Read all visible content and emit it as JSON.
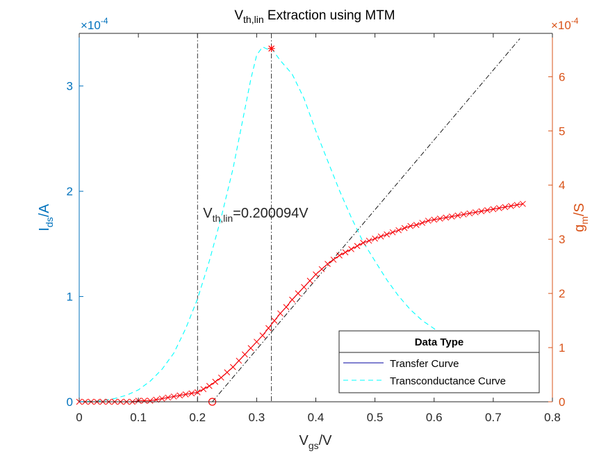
{
  "chart_data": {
    "type": "line",
    "title": {
      "main": "V",
      "sub": "th,lin",
      "rest": " Extraction using MTM"
    },
    "xlabel": {
      "main": "V",
      "sub": "gs",
      "rest": "/V"
    },
    "ylabel_left": {
      "main": "I",
      "sub": "ds",
      "rest": "/A"
    },
    "ylabel_right": {
      "main": "g",
      "sub": "m",
      "rest": "/S"
    },
    "exponent_left": {
      "base": "×10",
      "power": "-4"
    },
    "exponent_right": {
      "base": "×10",
      "power": "-4"
    },
    "xlim": [
      0,
      0.8
    ],
    "ylim_left": [
      0,
      3.5
    ],
    "ylim_right": [
      0,
      6.8
    ],
    "xticks": [
      "0",
      "0.1",
      "0.2",
      "0.3",
      "0.4",
      "0.5",
      "0.6",
      "0.7",
      "0.8"
    ],
    "yticks_left": [
      "0",
      "1",
      "2",
      "3"
    ],
    "yticks_right": [
      "0",
      "1",
      "2",
      "3",
      "4",
      "5",
      "6"
    ],
    "annotation": {
      "main": "V",
      "sub": "th,lin",
      "rest": "=0.200094V",
      "x": 0.2,
      "y": 1.75
    },
    "colors": {
      "left_axis": "#0072BD",
      "right_axis": "#D95319",
      "transfer": "#0000A0",
      "transconductance": "#00FFFF",
      "markers": "#FF0000",
      "guides": "#000000"
    },
    "legend": {
      "title": "Data Type",
      "position": "bottom-right",
      "entries": [
        "Transfer Curve",
        "Transconductance Curve"
      ]
    },
    "series": [
      {
        "name": "Transfer Curve",
        "axis": "left",
        "x": [
          0,
          0.01,
          0.02,
          0.03,
          0.04,
          0.05,
          0.06,
          0.07,
          0.08,
          0.09,
          0.1,
          0.11,
          0.12,
          0.13,
          0.14,
          0.15,
          0.16,
          0.17,
          0.18,
          0.19,
          0.2,
          0.21,
          0.22,
          0.23,
          0.24,
          0.25,
          0.26,
          0.27,
          0.28,
          0.29,
          0.3,
          0.31,
          0.32,
          0.33,
          0.34,
          0.35,
          0.36,
          0.37,
          0.38,
          0.39,
          0.4,
          0.41,
          0.42,
          0.43,
          0.44,
          0.45,
          0.46,
          0.47,
          0.48,
          0.49,
          0.5,
          0.51,
          0.52,
          0.53,
          0.54,
          0.55,
          0.56,
          0.57,
          0.58,
          0.59,
          0.6,
          0.61,
          0.62,
          0.63,
          0.64,
          0.65,
          0.66,
          0.67,
          0.68,
          0.69,
          0.7,
          0.71,
          0.72,
          0.73,
          0.74,
          0.75
        ],
        "y": [
          0.0,
          0.0,
          0.0,
          0.0,
          0.0,
          0.0,
          0.0,
          0.0,
          0.0,
          0.0,
          0.01,
          0.01,
          0.01,
          0.02,
          0.03,
          0.04,
          0.05,
          0.06,
          0.07,
          0.08,
          0.09,
          0.12,
          0.15,
          0.19,
          0.23,
          0.28,
          0.33,
          0.39,
          0.45,
          0.51,
          0.57,
          0.63,
          0.7,
          0.77,
          0.84,
          0.9,
          0.97,
          1.03,
          1.09,
          1.15,
          1.21,
          1.26,
          1.31,
          1.35,
          1.39,
          1.42,
          1.45,
          1.48,
          1.51,
          1.53,
          1.55,
          1.57,
          1.59,
          1.61,
          1.63,
          1.65,
          1.67,
          1.68,
          1.7,
          1.72,
          1.73,
          1.74,
          1.75,
          1.76,
          1.77,
          1.78,
          1.79,
          1.8,
          1.81,
          1.82,
          1.83,
          1.84,
          1.85,
          1.86,
          1.87,
          1.88
        ]
      },
      {
        "name": "Transconductance Curve",
        "axis": "right",
        "x": [
          0,
          0.02,
          0.04,
          0.06,
          0.08,
          0.1,
          0.12,
          0.14,
          0.16,
          0.18,
          0.2,
          0.22,
          0.24,
          0.26,
          0.28,
          0.29,
          0.3,
          0.31,
          0.32,
          0.325,
          0.33,
          0.34,
          0.36,
          0.38,
          0.4,
          0.42,
          0.44,
          0.46,
          0.48,
          0.5,
          0.52,
          0.54,
          0.56,
          0.58,
          0.6,
          0.62,
          0.64
        ],
        "y": [
          0.0,
          0.01,
          0.02,
          0.06,
          0.12,
          0.22,
          0.38,
          0.6,
          0.9,
          1.35,
          1.9,
          2.6,
          3.4,
          4.3,
          5.4,
          5.95,
          6.4,
          6.55,
          6.5,
          6.52,
          6.45,
          6.3,
          6.05,
          5.6,
          5.0,
          4.45,
          3.9,
          3.4,
          2.95,
          2.6,
          2.25,
          1.95,
          1.7,
          1.5,
          1.35,
          1.15,
          0.95
        ]
      }
    ],
    "tangent_line": {
      "x": [
        0.225,
        0.745
      ],
      "y": [
        0.0,
        3.45
      ]
    },
    "vertical_lines": [
      0.2,
      0.325
    ],
    "peak_marker": {
      "x": 0.325,
      "y": 6.52
    },
    "intercept_marker": {
      "x": 0.225,
      "y": 0.0
    }
  }
}
